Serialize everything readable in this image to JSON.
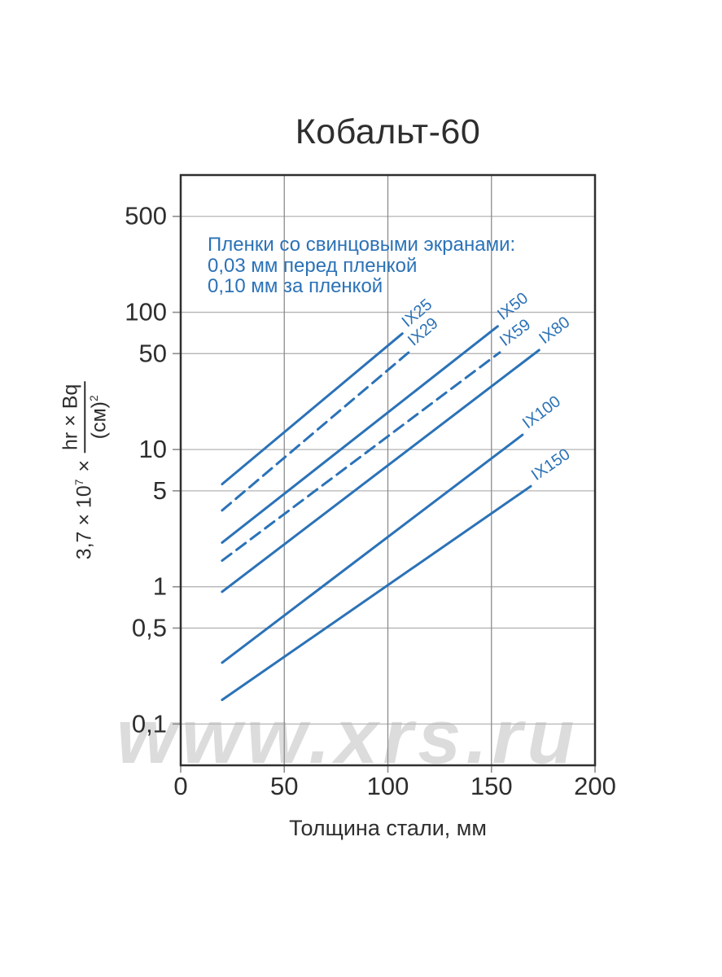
{
  "title": "Кобальт-60",
  "watermark": "www.xrs.ru",
  "annotation": {
    "line1": "Пленки со свинцовыми экранами:",
    "line2": "0,03 мм перед пленкой",
    "line3": "0,10 мм за пленкой"
  },
  "x_axis": {
    "label": "Толщина стали, мм"
  },
  "y_axis": {
    "prefix": "3,7 × 10",
    "prefix_exp": "7",
    "times": "×",
    "frac_numerator": "hr × Bq",
    "frac_denominator": "(см)",
    "frac_denominator_exp": "2"
  },
  "colors": {
    "accent": "#2b72b7",
    "text": "#2e2e2e",
    "grid_h": "#b4b4b4",
    "grid_v": "#8c8c8c",
    "border": "#2f2f2f",
    "watermark": "#dcdcdc"
  },
  "chart_data": {
    "type": "line",
    "title": "Кобальт-60",
    "xlabel": "Толщина стали, мм",
    "ylabel": "3,7 × 10^7 × (hr × Bq)/(см)^2",
    "x_scale": "linear",
    "y_scale": "log",
    "xlim": [
      0,
      200
    ],
    "ylim": [
      0.05,
      1000
    ],
    "grid": true,
    "legend_position": "inline-labels",
    "x_ticks": [
      {
        "value": 0,
        "label": "0"
      },
      {
        "value": 50,
        "label": "50"
      },
      {
        "value": 100,
        "label": "100"
      },
      {
        "value": 150,
        "label": "150"
      },
      {
        "value": 200,
        "label": "200"
      }
    ],
    "y_ticks": [
      {
        "value": 500,
        "label": "500"
      },
      {
        "value": 100,
        "label": "100"
      },
      {
        "value": 50,
        "label": "50"
      },
      {
        "value": 10,
        "label": "10"
      },
      {
        "value": 5,
        "label": "5"
      },
      {
        "value": 1,
        "label": "1"
      },
      {
        "value": 0.5,
        "label": "0,5"
      },
      {
        "value": 0.1,
        "label": "0,1"
      }
    ],
    "series": [
      {
        "name": "IX25",
        "style": "solid",
        "points": [
          [
            20,
            5.6
          ],
          [
            107,
            70
          ]
        ]
      },
      {
        "name": "IX29",
        "style": "dashed",
        "points": [
          [
            20,
            3.6
          ],
          [
            110,
            51
          ]
        ]
      },
      {
        "name": "IX50",
        "style": "solid",
        "points": [
          [
            20,
            2.1
          ],
          [
            153,
            79
          ]
        ]
      },
      {
        "name": "IX59",
        "style": "dashed",
        "points": [
          [
            20,
            1.55
          ],
          [
            154,
            51
          ]
        ]
      },
      {
        "name": "IX80",
        "style": "solid",
        "points": [
          [
            20,
            0.92
          ],
          [
            173,
            53
          ]
        ]
      },
      {
        "name": "IX100",
        "style": "solid",
        "points": [
          [
            20,
            0.28
          ],
          [
            165,
            12.8
          ]
        ]
      },
      {
        "name": "IX150",
        "style": "solid",
        "points": [
          [
            20,
            0.15
          ],
          [
            169,
            5.4
          ]
        ]
      }
    ]
  }
}
